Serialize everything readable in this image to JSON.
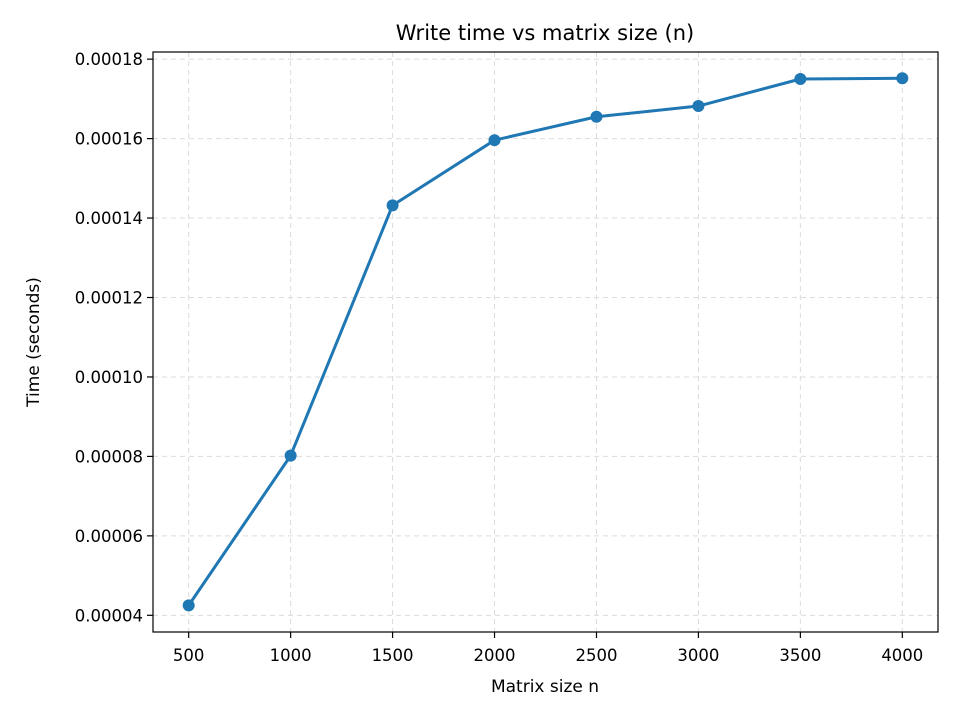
{
  "chart_data": {
    "type": "line",
    "title": "Write time vs matrix size (n)",
    "xlabel": "Matrix size n",
    "ylabel": "Time (seconds)",
    "x": [
      500,
      1000,
      1500,
      2000,
      2500,
      3000,
      3500,
      4000
    ],
    "series": [
      {
        "values": [
          4.25e-05,
          8.02e-05,
          0.0001432,
          0.0001596,
          0.0001655,
          0.0001682,
          0.000175,
          0.0001752
        ],
        "color": "#1f77b4",
        "marker": "circle"
      }
    ],
    "xticks": [
      500,
      1000,
      1500,
      2000,
      2500,
      3000,
      3500,
      4000
    ],
    "xtick_labels": [
      "500",
      "1000",
      "1500",
      "2000",
      "2500",
      "3000",
      "3500",
      "4000"
    ],
    "yticks": [
      4e-05,
      6e-05,
      8e-05,
      0.0001,
      0.00012,
      0.00014,
      0.00016,
      0.00018
    ],
    "ytick_labels": [
      "0.00004",
      "0.00006",
      "0.00008",
      "0.00010",
      "0.00012",
      "0.00014",
      "0.00016",
      "0.00018"
    ],
    "xlim": [
      325,
      4175
    ],
    "ylim": [
      3.58e-05,
      0.0001818
    ],
    "grid": true
  }
}
